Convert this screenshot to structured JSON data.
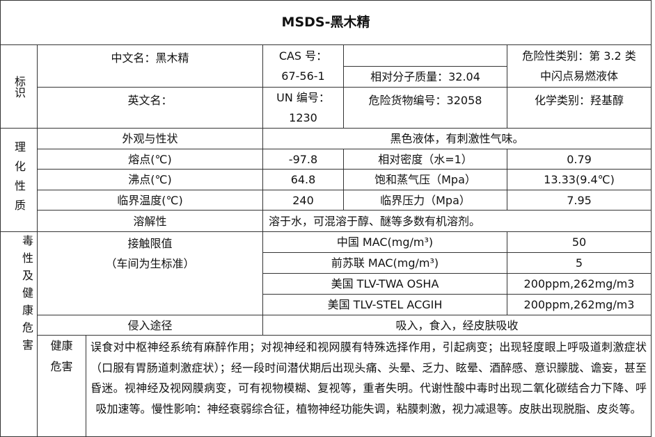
{
  "title": "MSDS-黑木精",
  "sections": {
    "identity": "标识",
    "physchem": "理化性质",
    "toxicity": "毒性及健康危害"
  },
  "identity": {
    "cn_name": "中文名：黑木精",
    "cas_label": "CAS 号：",
    "cas_value": "67-56-1",
    "mw": "相对分子质量：32.04",
    "hazard_class_1": "危险性类别：第 3.2 类",
    "hazard_class_2": "中闪点易燃液体",
    "en_name": "英文名：",
    "un_label": "UN 编号：",
    "un_value": "1230",
    "dg_no": "危险货物编号：32058",
    "chem_class": "化学类别：羟基醇"
  },
  "physchem": {
    "appearance_label": "外观与性状",
    "appearance": "黑色液体，有刺激性气味。",
    "rows": [
      {
        "k1": "熔点(℃)",
        "v1": "-97.8",
        "k2": "相对密度（水=1）",
        "v2": "0.79"
      },
      {
        "k1": "沸点(℃)",
        "v1": "64.8",
        "k2": "饱和蒸气压（Mpa）",
        "v2": "13.33(9.4℃)"
      },
      {
        "k1": "临界温度(℃)",
        "v1": "240",
        "k2": "临界压力（Mpa）",
        "v2": "7.95"
      }
    ],
    "solubility_label": "溶解性",
    "solubility": "溶于水，可混溶于醇、醚等多数有机溶剂。"
  },
  "toxicity": {
    "limit_label_1": "接触限值",
    "limit_label_2": "（车间为生标准）",
    "limits": [
      {
        "k": "中国 MAC(mg/m³)",
        "v": "50"
      },
      {
        "k": "前苏联 MAC(mg/m³)",
        "v": "5"
      },
      {
        "k": "美国 TLV-TWA OSHA",
        "v": "200ppm,262mg/m3"
      },
      {
        "k": "美国 TLV-STEL ACGIH",
        "v": "200ppm,262mg/m3"
      }
    ],
    "route_label": "侵入途径",
    "route": "吸入，食入，经皮肤吸收",
    "health_label": "健康危害",
    "health": "误食对中枢神经系统有麻醉作用；对视神经和视网膜有特殊选择作用，引起病变；出现轻度眼上呼吸道刺激症状（口服有胃肠道刺激症状）；经一段时间潜伏期后出现头痛、头晕、乏力、眩晕、酒醉感、意识朦胧、谵妄，甚至昏迷。视神经及视网膜病变，可有视物模糊、复视等，重者失明。代谢性酸中毒时出现二氧化碳结合力下降、呼吸加速等。慢性影响：神经衰弱综合征，植物神经功能失调，粘膜刺激，视力减退等。皮肤出现脱脂、皮炎等。"
  }
}
